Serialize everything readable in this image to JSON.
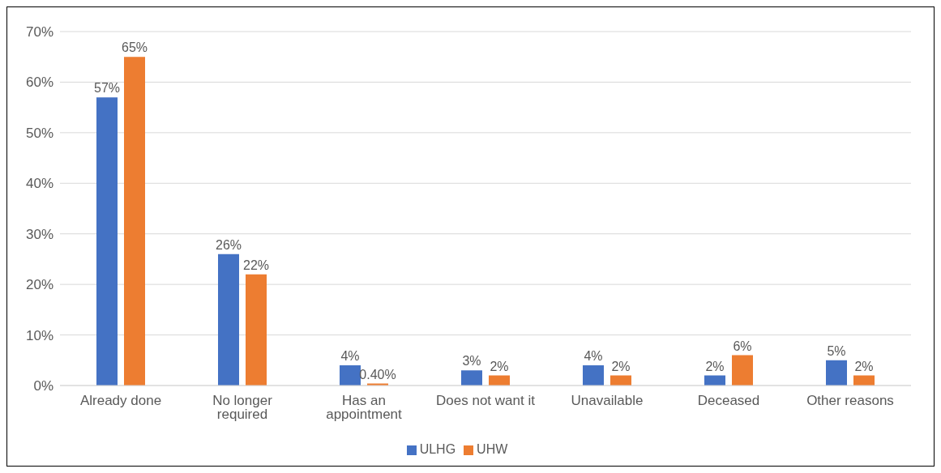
{
  "chart_data": {
    "type": "bar",
    "categories": [
      "Already done",
      "No longer required",
      "Has an appointment",
      "Does not want it",
      "Unavailable",
      "Deceased",
      "Other reasons"
    ],
    "series": [
      {
        "name": "ULHG",
        "color": "#4472c4",
        "values": [
          57,
          26,
          4,
          3,
          4,
          2,
          5
        ],
        "value_labels": [
          "57%",
          "26%",
          "4%",
          "3%",
          "4%",
          "2%",
          "5%"
        ]
      },
      {
        "name": "UHW",
        "color": "#ed7d31",
        "values": [
          65,
          22,
          0.4,
          2,
          2,
          6,
          2
        ],
        "value_labels": [
          "65%",
          "22%",
          "0.40%",
          "2%",
          "2%",
          "6%",
          "2%"
        ]
      }
    ],
    "ylim": [
      0,
      70
    ],
    "yticks": [
      {
        "value": 0,
        "label": "0%"
      },
      {
        "value": 10,
        "label": "10%"
      },
      {
        "value": 20,
        "label": "20%"
      },
      {
        "value": 30,
        "label": "30%"
      },
      {
        "value": 40,
        "label": "40%"
      },
      {
        "value": 50,
        "label": "50%"
      },
      {
        "value": 60,
        "label": "60%"
      },
      {
        "value": 70,
        "label": "70%"
      }
    ],
    "grid": "y",
    "legend": "bottom"
  }
}
